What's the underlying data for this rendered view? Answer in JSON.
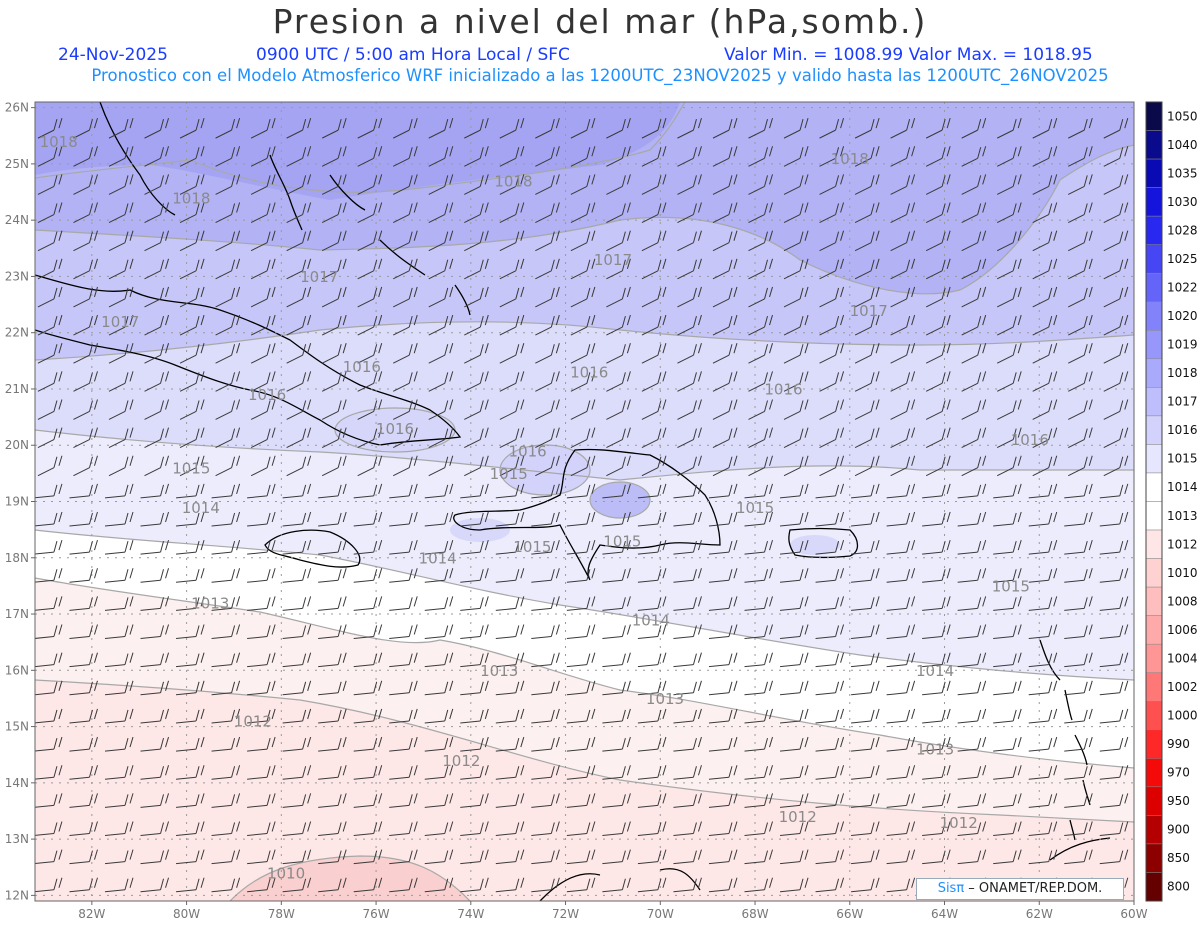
{
  "header": {
    "title": "Presion a nivel del mar (hPa,somb.)",
    "date": "24-Nov-2025",
    "time": "0900 UTC / 5:00 am Hora Local / SFC",
    "min_max": "Valor Min. = 1008.99  Valor Max. = 1018.95",
    "model_line": "Pronostico con el Modelo Atmosferico WRF inicializado a las 1200UTC_23NOV2025 y valido hasta las  1200UTC_26NOV2025"
  },
  "axes": {
    "lat_labels": [
      "26N",
      "25N",
      "24N",
      "23N",
      "22N",
      "21N",
      "20N",
      "19N",
      "18N",
      "17N",
      "16N",
      "15N",
      "14N",
      "13N",
      "12N"
    ],
    "lon_labels": [
      "82W",
      "80W",
      "78W",
      "76W",
      "74W",
      "72W",
      "70W",
      "68W",
      "66W",
      "64W",
      "62W",
      "60W"
    ]
  },
  "colorbar": {
    "levels": [
      "1050",
      "1040",
      "1035",
      "1030",
      "1028",
      "1025",
      "1022",
      "1020",
      "1019",
      "1018",
      "1017",
      "1016",
      "1015",
      "1014",
      "1013",
      "1012",
      "1010",
      "1008",
      "1006",
      "1004",
      "1002",
      "1000",
      "990",
      "970",
      "950",
      "900",
      "850",
      "800"
    ],
    "colors": [
      "#0a0a4a",
      "#0a0a8c",
      "#0a0ab4",
      "#1414dc",
      "#2828f0",
      "#4646f5",
      "#6464f8",
      "#8282fa",
      "#9696fb",
      "#aaaafc",
      "#bebefd",
      "#d2d2fd",
      "#e6e6fe",
      "#ffffff",
      "#ffffff",
      "#ffe6e6",
      "#ffd2d2",
      "#ffbebe",
      "#ffaaaa",
      "#ff9696",
      "#ff7878",
      "#ff5050",
      "#ff2828",
      "#f50a0a",
      "#dc0000",
      "#b40000",
      "#8c0000",
      "#640000"
    ]
  },
  "isobar_labels": [
    {
      "text": "1018",
      "lon": -82.7,
      "lat": 25.3
    },
    {
      "text": "1018",
      "lon": -79.9,
      "lat": 24.3
    },
    {
      "text": "1018",
      "lon": -73.1,
      "lat": 24.6
    },
    {
      "text": "1018",
      "lon": -66.0,
      "lat": 25.0
    },
    {
      "text": "1017",
      "lon": -81.4,
      "lat": 22.1
    },
    {
      "text": "1017",
      "lon": -77.2,
      "lat": 22.9
    },
    {
      "text": "1017",
      "lon": -71.0,
      "lat": 23.2
    },
    {
      "text": "1017",
      "lon": -65.6,
      "lat": 22.3
    },
    {
      "text": "1016",
      "lon": -78.3,
      "lat": 20.8
    },
    {
      "text": "1016",
      "lon": -76.3,
      "lat": 21.3
    },
    {
      "text": "1016",
      "lon": -75.6,
      "lat": 20.2
    },
    {
      "text": "1016",
      "lon": -72.8,
      "lat": 19.8
    },
    {
      "text": "1016",
      "lon": -71.5,
      "lat": 21.2
    },
    {
      "text": "1016",
      "lon": -67.4,
      "lat": 20.9
    },
    {
      "text": "1016",
      "lon": -62.2,
      "lat": 20.0
    },
    {
      "text": "1015",
      "lon": -79.9,
      "lat": 19.5
    },
    {
      "text": "1015",
      "lon": -73.2,
      "lat": 19.4
    },
    {
      "text": "1015",
      "lon": -68.0,
      "lat": 18.8
    },
    {
      "text": "1015",
      "lon": -72.7,
      "lat": 18.1
    },
    {
      "text": "1015",
      "lon": -62.6,
      "lat": 17.4
    },
    {
      "text": "1015",
      "lon": -70.8,
      "lat": 18.2
    },
    {
      "text": "1014",
      "lon": -79.7,
      "lat": 18.8
    },
    {
      "text": "1014",
      "lon": -74.7,
      "lat": 17.9
    },
    {
      "text": "1014",
      "lon": -70.2,
      "lat": 16.8
    },
    {
      "text": "1014",
      "lon": -64.2,
      "lat": 15.9
    },
    {
      "text": "1013",
      "lon": -79.5,
      "lat": 17.1
    },
    {
      "text": "1013",
      "lon": -73.4,
      "lat": 15.9
    },
    {
      "text": "1013",
      "lon": -69.9,
      "lat": 15.4
    },
    {
      "text": "1013",
      "lon": -64.2,
      "lat": 14.5
    },
    {
      "text": "1012",
      "lon": -78.6,
      "lat": 15.0
    },
    {
      "text": "1012",
      "lon": -74.2,
      "lat": 14.3
    },
    {
      "text": "1012",
      "lon": -67.1,
      "lat": 13.3
    },
    {
      "text": "1012",
      "lon": -63.7,
      "lat": 13.2
    },
    {
      "text": "1010",
      "lon": -77.9,
      "lat": 12.3
    }
  ],
  "credit": {
    "brand": "Sisπ",
    "org": " – ONAMET/REP.DOM."
  }
}
